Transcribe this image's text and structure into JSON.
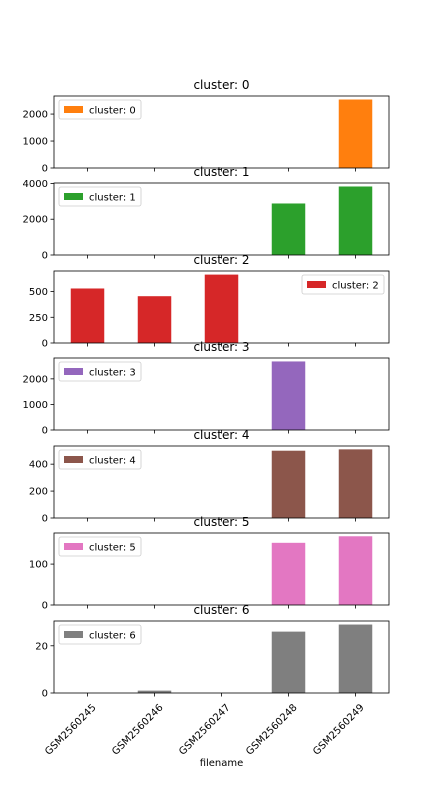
{
  "xlabel": "filename",
  "categories": [
    "GSM2560245",
    "GSM2560246",
    "GSM2560247",
    "GSM2560248",
    "GSM2560249"
  ],
  "chart_data": [
    {
      "type": "bar",
      "title": "cluster: 0",
      "legend": "cluster: 0",
      "legend_position": "top-left",
      "color": "#ff7f0e",
      "values": [
        0,
        0,
        0,
        0,
        2540
      ],
      "ylim": [
        0,
        2670
      ],
      "yticks": [
        0,
        1000,
        2000
      ]
    },
    {
      "type": "bar",
      "title": "cluster: 1",
      "legend": "cluster: 1",
      "legend_position": "top-left",
      "color": "#2ca02c",
      "values": [
        0,
        0,
        0,
        2880,
        3830
      ],
      "ylim": [
        0,
        4025
      ],
      "yticks": [
        0,
        2000,
        4000
      ]
    },
    {
      "type": "bar",
      "title": "cluster: 2",
      "legend": "cluster: 2",
      "legend_position": "top-right",
      "color": "#d62728",
      "values": [
        530,
        455,
        665,
        0,
        0
      ],
      "ylim": [
        0,
        700
      ],
      "yticks": [
        0,
        250,
        500
      ]
    },
    {
      "type": "bar",
      "title": "cluster: 3",
      "legend": "cluster: 3",
      "legend_position": "top-left",
      "color": "#9467bd",
      "values": [
        0,
        0,
        0,
        2680,
        0
      ],
      "ylim": [
        0,
        2815
      ],
      "yticks": [
        0,
        1000,
        2000
      ]
    },
    {
      "type": "bar",
      "title": "cluster: 4",
      "legend": "cluster: 4",
      "legend_position": "top-left",
      "color": "#8c564b",
      "values": [
        0,
        0,
        0,
        500,
        510
      ],
      "ylim": [
        0,
        535
      ],
      "yticks": [
        0,
        200,
        400
      ]
    },
    {
      "type": "bar",
      "title": "cluster: 5",
      "legend": "cluster: 5",
      "legend_position": "top-left",
      "color": "#e377c2",
      "values": [
        0,
        0,
        0,
        152,
        168
      ],
      "ylim": [
        0,
        176
      ],
      "yticks": [
        0,
        100
      ]
    },
    {
      "type": "bar",
      "title": "cluster: 6",
      "legend": "cluster: 6",
      "legend_position": "top-left",
      "color": "#7f7f7f",
      "values": [
        0,
        1,
        0,
        26,
        29
      ],
      "ylim": [
        0,
        30.5
      ],
      "yticks": [
        0,
        20
      ]
    }
  ]
}
